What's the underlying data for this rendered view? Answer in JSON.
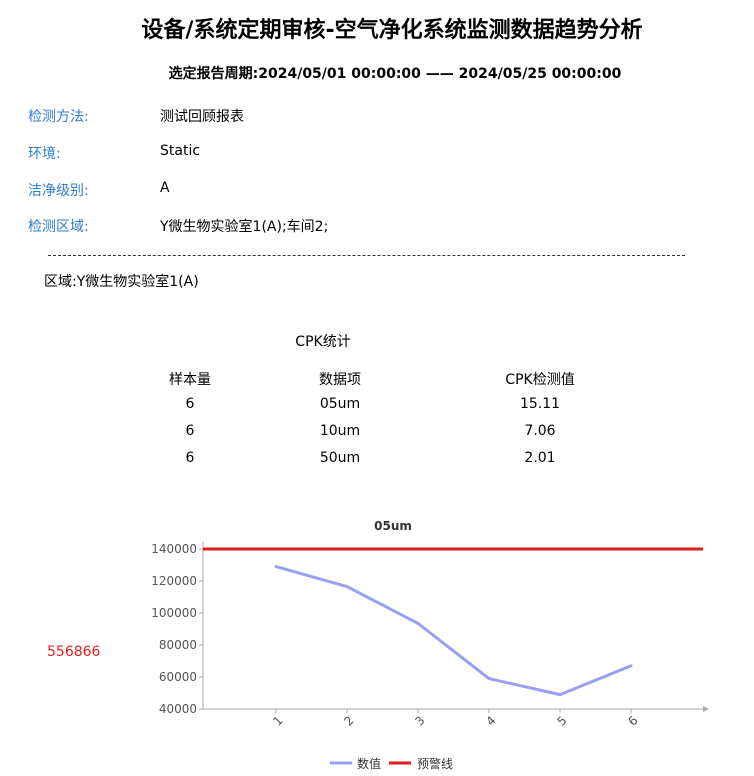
{
  "report": {
    "title": "设备/系统定期审核-空气净化系统监测数据趋势分析",
    "period": "选定报告周期:2024/05/01 00:00:00 —— 2024/05/25 00:00:00"
  },
  "info": [
    {
      "label": "检测方法:",
      "value": "测试回顾报表"
    },
    {
      "label": "环境:",
      "value": "Static"
    },
    {
      "label": "洁净级别:",
      "value": "A"
    },
    {
      "label": "检测区域:",
      "value": "Y微生物实验室1(A);车间2;"
    }
  ],
  "region_label": "区域:Y微生物实验室1(A)",
  "cpk": {
    "title": "CPK统计",
    "headers": [
      "样本量",
      "数据项",
      "CPK检测值"
    ],
    "rows": [
      [
        "6",
        "05um",
        "15.11"
      ],
      [
        "6",
        "10um",
        "7.06"
      ],
      [
        "6",
        "50um",
        "2.01"
      ]
    ]
  },
  "side_number": "556866",
  "colors": {
    "label_blue": "#2e7fd1",
    "series_value": "#9aa0f0",
    "series_warning": "#e01e1e"
  },
  "chart_data": {
    "type": "line",
    "title": "05um",
    "x": [
      "1",
      "2",
      "3",
      "4",
      "5",
      "6"
    ],
    "ylim": [
      40000,
      140000
    ],
    "yticks": [
      "40000",
      "60000",
      "80000",
      "100000",
      "120000",
      "140000"
    ],
    "series": [
      {
        "name": "数值",
        "values": [
          129000,
          116500,
          93500,
          59000,
          49000,
          67000
        ]
      },
      {
        "name": "预警线",
        "values": [
          140000,
          140000,
          140000,
          140000,
          140000,
          140000
        ]
      }
    ],
    "legend_position": "bottom-center",
    "grid": false
  }
}
